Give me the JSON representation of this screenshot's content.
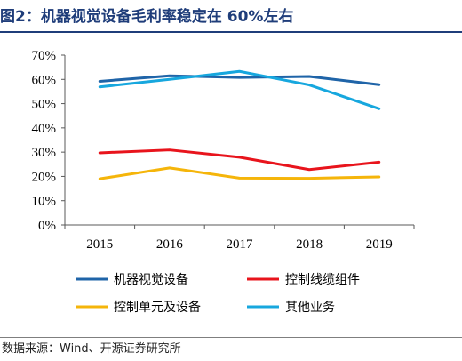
{
  "figure_title": "图2：机器视觉设备毛利率稳定在 60%左右",
  "source_note": "数据来源：Wind、开源证券研究所",
  "chart_data": {
    "type": "line",
    "title": "图2：机器视觉设备毛利率稳定在 60%左右",
    "xlabel": "",
    "ylabel": "",
    "categories": [
      "2015",
      "2016",
      "2017",
      "2018",
      "2019"
    ],
    "y_ticks": [
      "0%",
      "10%",
      "20%",
      "30%",
      "40%",
      "50%",
      "60%",
      "70%"
    ],
    "ylim": [
      0,
      70
    ],
    "y_unit": "%",
    "grid": false,
    "legend_position": "bottom",
    "series": [
      {
        "name": "机器视觉设备",
        "color": "#1f64a8",
        "values": [
          59.2,
          61.5,
          60.8,
          61.2,
          57.8
        ]
      },
      {
        "name": "控制线缆组件",
        "color": "#e8141c",
        "values": [
          29.7,
          30.9,
          27.9,
          22.8,
          25.9
        ]
      },
      {
        "name": "控制单元及设备",
        "color": "#f5b50a",
        "values": [
          19.0,
          23.5,
          19.3,
          19.2,
          19.8
        ]
      },
      {
        "name": "其他业务",
        "color": "#17a7de",
        "values": [
          56.9,
          60.0,
          63.3,
          57.7,
          47.9
        ]
      }
    ]
  }
}
